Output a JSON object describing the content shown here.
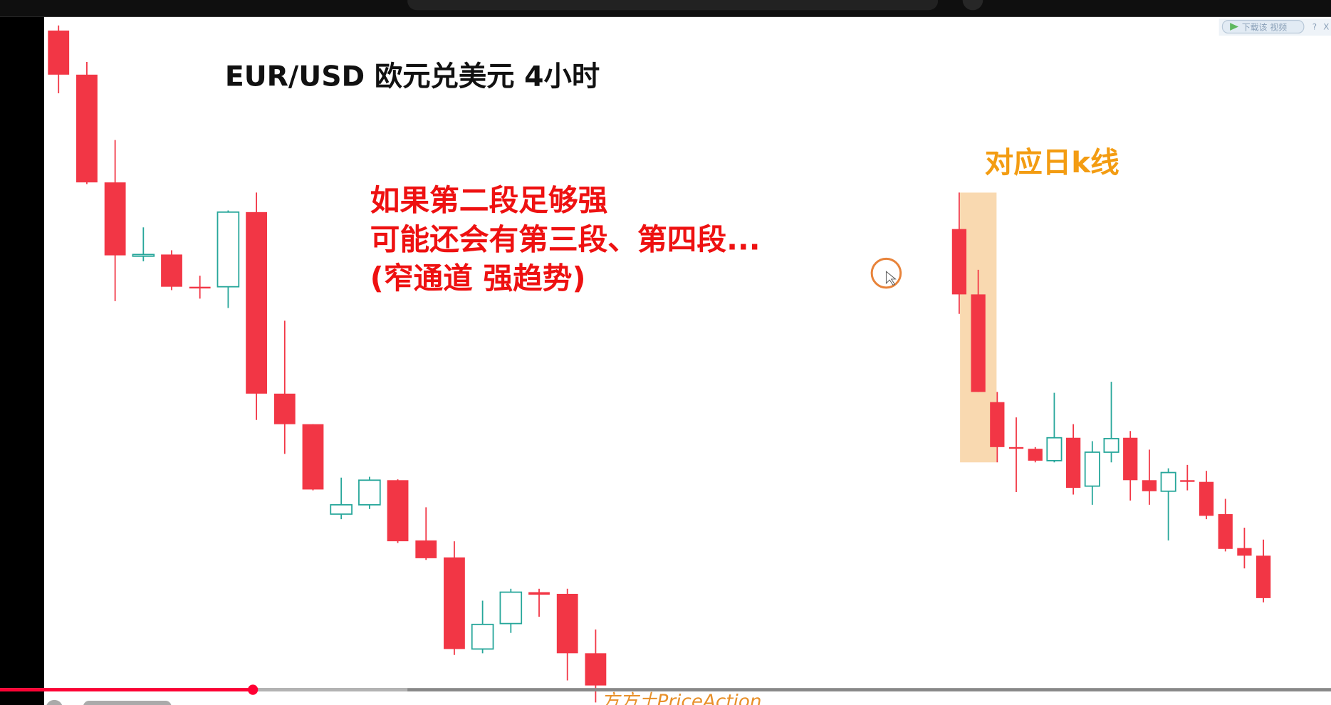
{
  "title": "EUR/USD 欧元兑美元  4小时",
  "annotation_lines": [
    "如果第二段足够强",
    "可能还会有第三段、第四段...",
    "(窄通道  强趋势)"
  ],
  "daily_label": "对应日k线",
  "watermark": "方方土PriceAction",
  "download_button": {
    "label": "下载该 视频",
    "help": "?",
    "close": "X"
  },
  "player": {
    "progress_percent": 19,
    "played_color": "#ff0033"
  },
  "colors": {
    "bear": "#f23645",
    "bull": "#26a69a",
    "highlight": "#f9d9b0",
    "title": "#111111",
    "annotation": "#ee1111",
    "daily_label": "#f39c12"
  },
  "chart_data": {
    "type": "candlestick",
    "groups": [
      {
        "name": "4h",
        "candles": [
          {
            "o": 795,
            "h": 801,
            "l": 721,
            "c": 743
          },
          {
            "o": 743,
            "h": 758,
            "l": 614,
            "c": 616
          },
          {
            "o": 616,
            "h": 666,
            "l": 476,
            "c": 530
          },
          {
            "o": 530,
            "h": 563,
            "l": 523,
            "c": 531
          },
          {
            "o": 531,
            "h": 536,
            "l": 489,
            "c": 493
          },
          {
            "o": 493,
            "h": 506,
            "l": 479,
            "c": 492
          },
          {
            "o": 493,
            "h": 583,
            "l": 468,
            "c": 581
          },
          {
            "o": 581,
            "h": 604,
            "l": 336,
            "c": 367
          },
          {
            "o": 367,
            "h": 453,
            "l": 296,
            "c": 331
          },
          {
            "o": 331,
            "h": 331,
            "l": 253,
            "c": 254
          },
          {
            "o": 225,
            "h": 268,
            "l": 219,
            "c": 236
          },
          {
            "o": 236,
            "h": 269,
            "l": 231,
            "c": 265
          },
          {
            "o": 265,
            "h": 266,
            "l": 191,
            "c": 193
          },
          {
            "o": 194,
            "h": 233,
            "l": 171,
            "c": 173
          },
          {
            "o": 174,
            "h": 193,
            "l": 59,
            "c": 66
          },
          {
            "o": 66,
            "h": 123,
            "l": 61,
            "c": 95
          },
          {
            "o": 96,
            "h": 137,
            "l": 85,
            "c": 133
          },
          {
            "o": 133,
            "h": 137,
            "l": 104,
            "c": 130
          },
          {
            "o": 131,
            "h": 137,
            "l": 29,
            "c": 61
          },
          {
            "o": 61,
            "h": 89,
            "l": 3,
            "c": 23
          }
        ]
      },
      {
        "name": "daily",
        "highlight": [
          0,
          1
        ],
        "candles": [
          {
            "o": 561,
            "h": 604,
            "l": 461,
            "c": 484
          },
          {
            "o": 484,
            "h": 513,
            "l": 369,
            "c": 369
          },
          {
            "o": 357,
            "h": 369,
            "l": 286,
            "c": 304
          },
          {
            "o": 304,
            "h": 339,
            "l": 251,
            "c": 302
          },
          {
            "o": 302,
            "h": 304,
            "l": 286,
            "c": 288
          },
          {
            "o": 288,
            "h": 368,
            "l": 286,
            "c": 315
          },
          {
            "o": 315,
            "h": 331,
            "l": 248,
            "c": 256
          },
          {
            "o": 258,
            "h": 311,
            "l": 236,
            "c": 298
          },
          {
            "o": 298,
            "h": 381,
            "l": 286,
            "c": 314
          },
          {
            "o": 315,
            "h": 323,
            "l": 241,
            "c": 265
          },
          {
            "o": 265,
            "h": 301,
            "l": 236,
            "c": 252
          },
          {
            "o": 252,
            "h": 279,
            "l": 194,
            "c": 274
          },
          {
            "o": 265,
            "h": 283,
            "l": 253,
            "c": 263
          },
          {
            "o": 263,
            "h": 276,
            "l": 219,
            "c": 223
          },
          {
            "o": 225,
            "h": 243,
            "l": 181,
            "c": 184
          },
          {
            "o": 185,
            "h": 209,
            "l": 161,
            "c": 176
          },
          {
            "o": 176,
            "h": 195,
            "l": 121,
            "c": 126
          }
        ]
      }
    ]
  }
}
